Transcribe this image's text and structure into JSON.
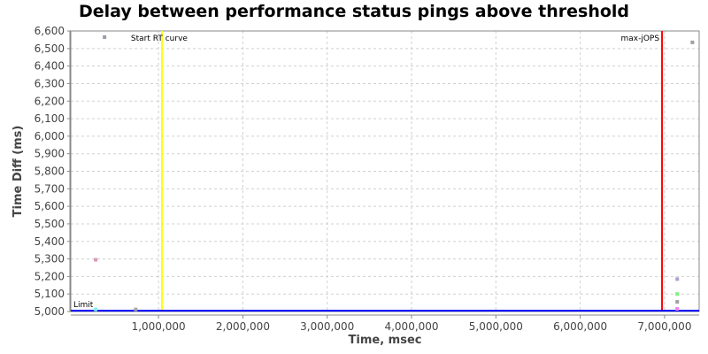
{
  "chart_data": {
    "type": "scatter",
    "title": "Delay between performance status pings above threshold",
    "xlabel": "Time, msec",
    "ylabel": "Time Diff (ms)",
    "xlim": [
      -40000,
      7410000
    ],
    "ylim": [
      5000,
      6600
    ],
    "grid": true,
    "xticks": [
      1000000,
      2000000,
      3000000,
      4000000,
      5000000,
      6000000,
      7000000
    ],
    "xtick_labels": [
      "1,000,000",
      "2,000,000",
      "3,000,000",
      "4,000,000",
      "5,000,000",
      "6,000,000",
      "7,000,000"
    ],
    "yticks": [
      5000,
      5100,
      5200,
      5300,
      5400,
      5500,
      5600,
      5700,
      5800,
      5900,
      6000,
      6100,
      6200,
      6300,
      6400,
      6500,
      6600
    ],
    "ytick_labels": [
      "5,000",
      "5,100",
      "5,200",
      "5,300",
      "5,400",
      "5,500",
      "5,600",
      "5,700",
      "5,800",
      "5,900",
      "6,000",
      "6,100",
      "6,200",
      "6,300",
      "6,400",
      "6,500",
      "6,600"
    ],
    "points": [
      {
        "x": 360000,
        "y": 6565,
        "color": "#a09aa8"
      },
      {
        "x": 255000,
        "y": 5295,
        "color": "#d89ab8"
      },
      {
        "x": 255000,
        "y": 5012,
        "color": "#80f0f0"
      },
      {
        "x": 730000,
        "y": 5012,
        "color": "#a8a8a0"
      },
      {
        "x": 7330000,
        "y": 6535,
        "color": "#a0a0a0"
      },
      {
        "x": 7150000,
        "y": 5185,
        "color": "#b0a0d0"
      },
      {
        "x": 7150000,
        "y": 5100,
        "color": "#80f080"
      },
      {
        "x": 7150000,
        "y": 5055,
        "color": "#a0a0a0"
      },
      {
        "x": 7150000,
        "y": 5015,
        "color": "#f080f0"
      }
    ],
    "markers": [
      {
        "label": "Start RT curve",
        "x": 1040000,
        "color": "#ffff00"
      },
      {
        "label": "max-jOPS",
        "x": 6970000,
        "color": "#ff0000"
      }
    ],
    "threshold": {
      "label": "Limit",
      "y": 5000,
      "color": "#0000ff"
    }
  }
}
